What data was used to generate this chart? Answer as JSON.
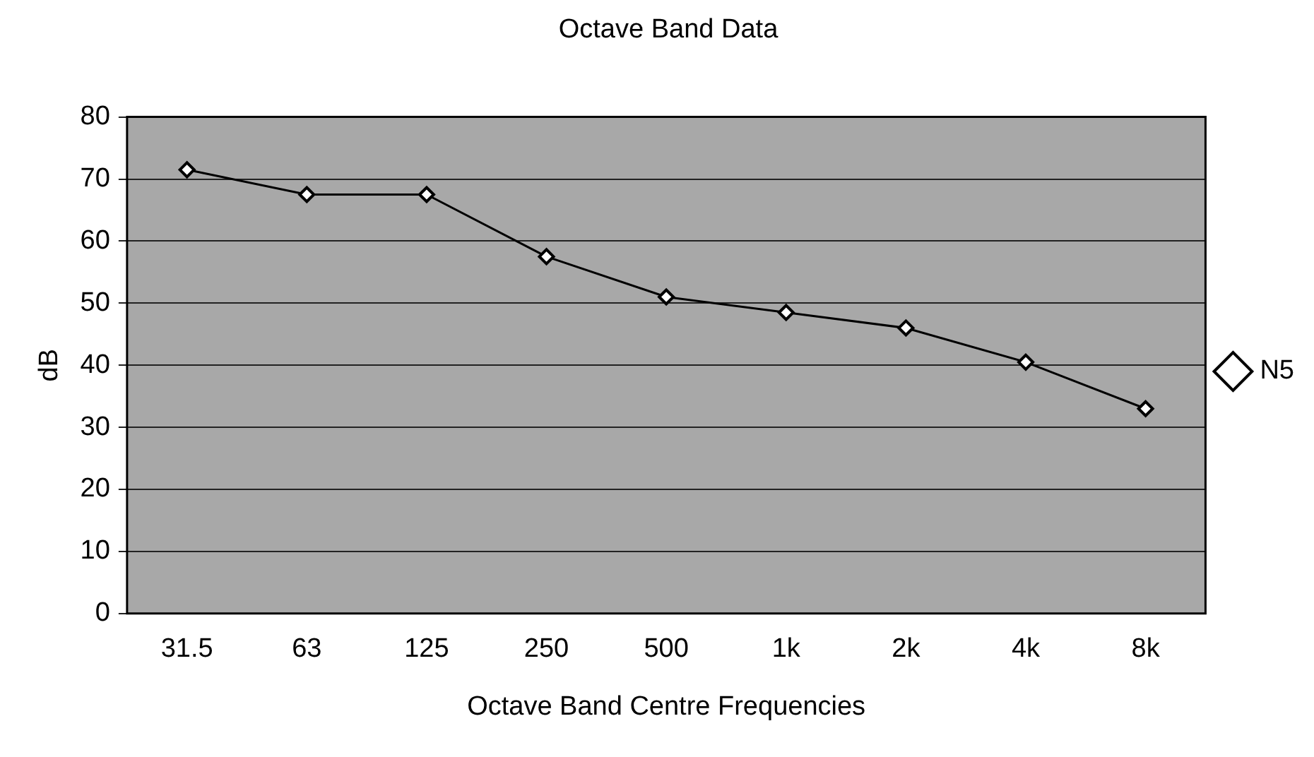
{
  "chart_data": {
    "type": "line",
    "title": "Octave Band Data",
    "xlabel": "Octave Band Centre Frequencies",
    "ylabel": "dB",
    "categories": [
      "31.5",
      "63",
      "125",
      "250",
      "500",
      "1k",
      "2k",
      "4k",
      "8k"
    ],
    "series": [
      {
        "name": "N5",
        "color": "#000000",
        "values": [
          71.5,
          67.5,
          67.5,
          57.5,
          51,
          48.5,
          46,
          40.5,
          33
        ]
      }
    ],
    "ylim": [
      0,
      80
    ],
    "yticks": [
      0,
      10,
      20,
      30,
      40,
      50,
      60,
      70,
      80
    ],
    "grid": "y",
    "legend": "right",
    "marker": "diamond"
  }
}
